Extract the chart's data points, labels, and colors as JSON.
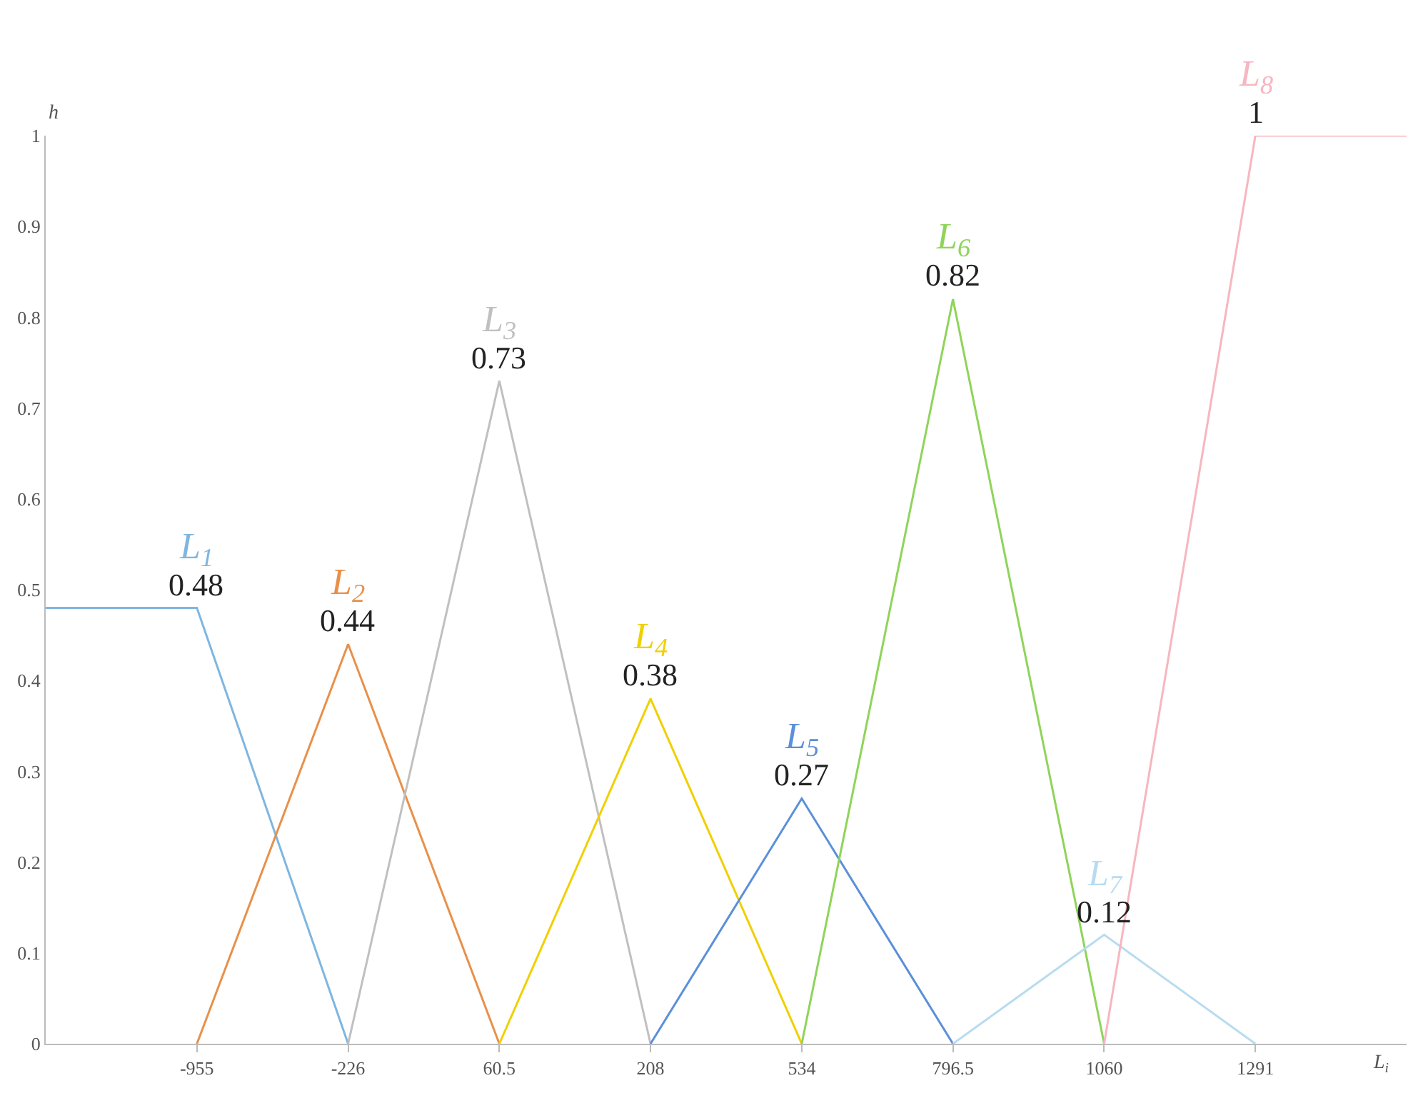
{
  "chart_data": {
    "type": "line",
    "xlabel": "L$_{i}$",
    "ylabel": "h",
    "categories": [
      null,
      "-955",
      "-226",
      "60.5",
      "208",
      "534",
      "796.5",
      "1060",
      "1291",
      null
    ],
    "ylim": [
      0,
      1
    ],
    "yticks": [
      0,
      0.1,
      0.2,
      0.3,
      0.4,
      0.5,
      0.6,
      0.7,
      0.8,
      0.9,
      1
    ],
    "legend": false,
    "marker": "none",
    "line_style": "solid",
    "series": [
      {
        "name": "L$_{1}$",
        "color": "#7fb6e0",
        "values": [
          0.48,
          0.48,
          0,
          null,
          null,
          null,
          null,
          null,
          null,
          null
        ],
        "value_labels": [
          null,
          "0.48",
          null,
          null,
          null,
          null,
          null,
          null,
          null,
          null
        ]
      },
      {
        "name": "L$_{2}$",
        "color": "#e8904a",
        "values": [
          null,
          0,
          0.44,
          0,
          null,
          null,
          null,
          null,
          null,
          null
        ],
        "value_labels": [
          null,
          null,
          "0.44",
          null,
          null,
          null,
          null,
          null,
          null,
          null
        ]
      },
      {
        "name": "L$_{3}$",
        "color": "#c0c0c0",
        "values": [
          null,
          null,
          0,
          0.73,
          0,
          null,
          null,
          null,
          null,
          null
        ],
        "value_labels": [
          null,
          null,
          null,
          "0.73",
          null,
          null,
          null,
          null,
          null,
          null
        ]
      },
      {
        "name": "L$_{4}$",
        "color": "#f0d000",
        "values": [
          null,
          null,
          null,
          0,
          0.38,
          0,
          null,
          null,
          null,
          null
        ],
        "value_labels": [
          null,
          null,
          null,
          null,
          "0.38",
          null,
          null,
          null,
          null,
          null
        ]
      },
      {
        "name": "L$_{5}$",
        "color": "#5b8fd9",
        "values": [
          null,
          null,
          null,
          null,
          0,
          0.27,
          0,
          null,
          null,
          null
        ],
        "value_labels": [
          null,
          null,
          null,
          null,
          null,
          "0.27",
          null,
          null,
          null,
          null
        ]
      },
      {
        "name": "L$_{6}$",
        "color": "#8fd45a",
        "values": [
          null,
          null,
          null,
          null,
          null,
          0,
          0.82,
          0,
          null,
          null
        ],
        "value_labels": [
          null,
          null,
          null,
          null,
          null,
          null,
          "0.82",
          null,
          null,
          null
        ]
      },
      {
        "name": "L$_{7}$",
        "color": "#b8dcef",
        "values": [
          null,
          null,
          null,
          null,
          null,
          null,
          0,
          0.12,
          0,
          null
        ],
        "value_labels": [
          null,
          null,
          null,
          null,
          null,
          null,
          null,
          "0.12",
          null,
          null
        ]
      },
      {
        "name": "L$_{8}$",
        "color": "#f7b6c0",
        "values": [
          null,
          null,
          null,
          null,
          null,
          null,
          null,
          0,
          1,
          1
        ],
        "value_labels": [
          null,
          null,
          null,
          null,
          null,
          null,
          null,
          null,
          "1",
          null
        ]
      }
    ]
  }
}
